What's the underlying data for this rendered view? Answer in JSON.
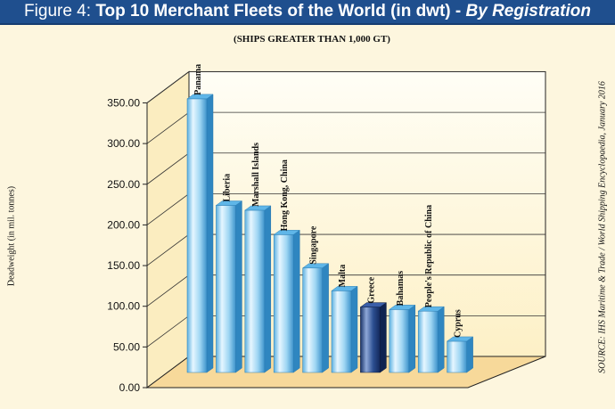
{
  "title": {
    "prefix": "Figure 4:",
    "main": "Top 10 Merchant Fleets of the World (in dwt) -",
    "emphasis": "By Registration"
  },
  "source": "SOURCE: IHS Maritime & Trade / World Shipping Encyclopaedia, January 2016",
  "colors": {
    "title_bar": "#1f4f8e",
    "background": "#fdf6de",
    "bar_light": "#7fc8ef",
    "bar_highlight": "#1f3d7a"
  },
  "chart_data": {
    "type": "bar",
    "title": "",
    "subtitle": "(SHIPS GREATER THAN 1,000 GT)",
    "xlabel": "",
    "ylabel": "Deadweight (in mil. tonnes)",
    "ylim": [
      0,
      350
    ],
    "yticks": [
      "0.00",
      "50.00",
      "100.00",
      "150.00",
      "200.00",
      "250.00",
      "300.00",
      "350.00"
    ],
    "grid": true,
    "categories": [
      "Panama",
      "Liberia",
      "Marshall Islands",
      "Hong Kong, China",
      "Singapore",
      "Malta",
      "Greece",
      "Bahamas",
      "People's Republic of China",
      "Cyprus"
    ],
    "values": [
      355,
      224,
      218,
      188,
      147,
      119,
      99,
      96,
      94,
      57
    ],
    "highlight": [
      "Greece"
    ]
  }
}
